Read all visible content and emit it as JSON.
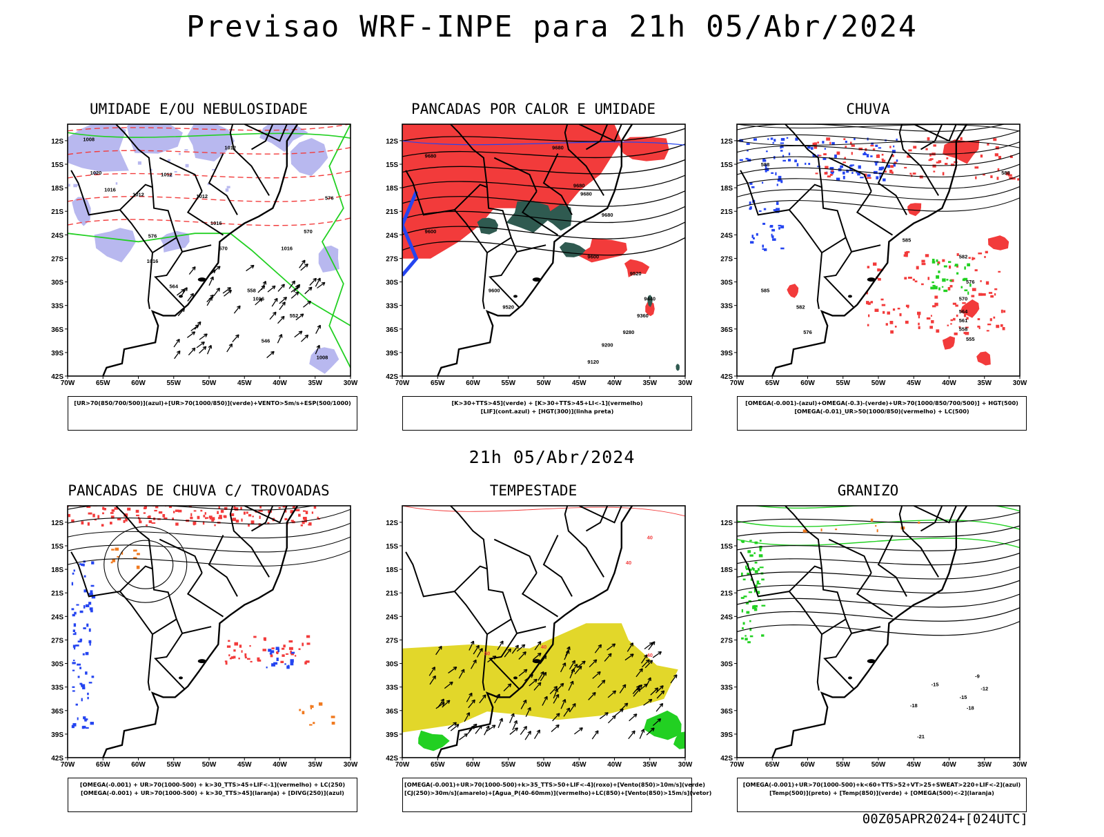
{
  "header": {
    "title": "Previsao WRF-INPE  para 21h 05/Abr/2024"
  },
  "mid_title": "21h 05/Abr/2024",
  "footer": "00Z05APR2024+[024UTC]",
  "colors": {
    "red": "#f23b3b",
    "blue": "#2545f0",
    "green": "#22d022",
    "lilac": "#b8b8ef",
    "dark_teal": "#2f5a50",
    "yellow": "#e2d72a",
    "orange": "#f07a20"
  },
  "axes": {
    "lon_ticks": [
      "70W",
      "65W",
      "60W",
      "55W",
      "50W",
      "45W",
      "40W",
      "35W",
      "30W"
    ],
    "lat_ticks": [
      "12S",
      "15S",
      "18S",
      "21S",
      "24S",
      "27S",
      "30S",
      "33S",
      "36S",
      "39S",
      "42S"
    ]
  },
  "chart_data": [
    {
      "type": "heatmap",
      "title": "UMIDADE E/OU NEBULOSIDADE",
      "legend": [
        "[UR>70(850/700/500)](azul)+[UR>70(1000/850)](verde)+VENTO>5m/s+ESP(500/1000)"
      ],
      "xlim": [
        "70W",
        "30W"
      ],
      "ylim": [
        "42S",
        "12S"
      ],
      "contour_labels": [
        "1008",
        "1012",
        "1012",
        "1012",
        "1012",
        "1016",
        "1016",
        "1016",
        "1016",
        "1016",
        "1020",
        "570",
        "576",
        "576",
        "570",
        "564",
        "558",
        "552",
        "546",
        "1008"
      ]
    },
    {
      "type": "heatmap",
      "title": "PANCADAS POR CALOR E UMIDADE",
      "legend": [
        "[K>30+TTS>45](verde) + [K>30+TTS>45+LI<-1](vermelho)",
        "[LIF](cont.azul) + [HGT(300)](linha preta)"
      ],
      "xlim": [
        "70W",
        "30W"
      ],
      "ylim": [
        "42S",
        "12S"
      ],
      "contour_labels": [
        "9680",
        "9680",
        "9680",
        "9680",
        "9680",
        "9600",
        "9520",
        "9440",
        "9360",
        "9280",
        "9200",
        "9120",
        "9600",
        "9520",
        "9440"
      ]
    },
    {
      "type": "heatmap",
      "title": "CHUVA",
      "legend": [
        "[OMEGA(-0.001)-(azul)+OMEGA(-0.3)-(verde)+UR>70(1000/850/700/500)] + HGT(500)",
        "[OMEGA(-0.01)_UR>50(1000/850)(vermelho) + LC(500)"
      ],
      "xlim": [
        "70W",
        "30W"
      ],
      "ylim": [
        "42S",
        "12S"
      ],
      "contour_labels": [
        "588",
        "585",
        "582",
        "576",
        "570",
        "564",
        "561",
        "558",
        "555",
        "585",
        "588",
        "582",
        "576"
      ]
    },
    {
      "type": "heatmap",
      "title": "PANCADAS DE CHUVA C/ TROVOADAS",
      "legend": [
        "[OMEGA(-0.001) + UR>70(1000-500) + k>30_TTS>45+LIF<-1](vermelho) + LC(250)",
        "[OMEGA(-0.001) + UR>70(1000-500) + k>30_TTS>45](laranja) + [DIVG(250)](azul)"
      ],
      "xlim": [
        "70W",
        "30W"
      ],
      "ylim": [
        "42S",
        "12S"
      ],
      "contour_labels": []
    },
    {
      "type": "heatmap",
      "title": "TEMPESTADE",
      "legend": [
        "[OMEGA(-0.001)+UR>70(1000-500)+k>35_TTS>50+LIF<-4](roxo)+[Vento(850)>10m/s](verde)",
        "[CJ(250)>30m/s](amarelo)+[Agua_P(40-60mm)](vermelho)+LC(850)+[Vento(850)>15m/s](vetor)"
      ],
      "xlim": [
        "70W",
        "30W"
      ],
      "ylim": [
        "42S",
        "12S"
      ],
      "contour_labels": [
        "40",
        "40",
        "50",
        "40",
        "40"
      ]
    },
    {
      "type": "heatmap",
      "title": "GRANIZO",
      "legend": [
        "[OMEGA(-0.001)+UR>70(1000-500)+k<60+TTS>52+VT>25+SWEAT>220+LIF<-2](azul)",
        "[Temp(500)](preto) + [Temp(850)](verde) + [OMEGA(500)<-2](laranja)"
      ],
      "xlim": [
        "70W",
        "30W"
      ],
      "ylim": [
        "42S",
        "12S"
      ],
      "contour_labels": [
        "-9",
        "-12",
        "-15",
        "-18",
        "-21",
        "-15",
        "-18"
      ]
    }
  ]
}
